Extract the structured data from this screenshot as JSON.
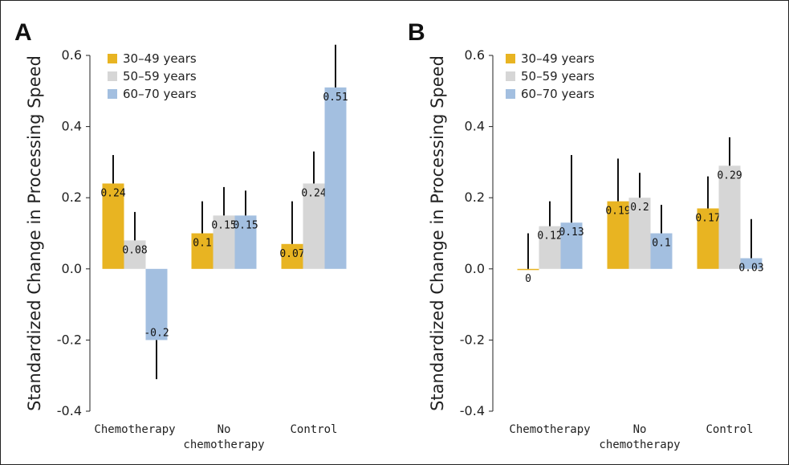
{
  "colors": {
    "series": [
      "#e8b422",
      "#d6d6d6",
      "#a3bfe0"
    ],
    "text": "#222222",
    "errorbar": "#111111"
  },
  "chart_data": [
    {
      "type": "bar",
      "panel": "A",
      "ylabel": "Standardized Change in Processing Speed",
      "ylim": [
        -0.4,
        0.6
      ],
      "yticks": [
        "-0.4",
        "-0.2",
        "0.0",
        "0.2",
        "0.4",
        "0.6"
      ],
      "categories": [
        "Chemotherapy",
        "No chemotherapy",
        "Control"
      ],
      "series": [
        {
          "name": "30–49 years",
          "values": [
            0.24,
            0.1,
            0.07
          ],
          "labels": [
            "0.24",
            "0.1",
            "0.07"
          ],
          "err_tips": [
            0.32,
            0.19,
            0.19
          ]
        },
        {
          "name": "50–59 years",
          "values": [
            0.08,
            0.15,
            0.24
          ],
          "labels": [
            "0.08",
            "0.15",
            "0.24"
          ],
          "err_tips": [
            0.16,
            0.23,
            0.33
          ]
        },
        {
          "name": "60–70 years",
          "values": [
            -0.2,
            0.15,
            0.51
          ],
          "labels": [
            "-0.2",
            "0.15",
            "0.51"
          ],
          "err_tips": [
            -0.31,
            0.22,
            0.63
          ]
        }
      ],
      "legend_position": "top-left",
      "grid": false
    },
    {
      "type": "bar",
      "panel": "B",
      "ylabel": "Standardized Change in Processing Speed",
      "ylim": [
        -0.4,
        0.6
      ],
      "yticks": [
        "-0.4",
        "-0.2",
        "0.0",
        "0.2",
        "0.4",
        "0.6"
      ],
      "categories": [
        "Chemotherapy",
        "No chemotherapy",
        "Control"
      ],
      "series": [
        {
          "name": "30–49 years",
          "values": [
            0.0,
            0.19,
            0.17
          ],
          "labels": [
            "0",
            "0.19",
            "0.17"
          ],
          "err_tips": [
            0.1,
            0.31,
            0.26
          ]
        },
        {
          "name": "50–59 years",
          "values": [
            0.12,
            0.2,
            0.29
          ],
          "labels": [
            "0.12",
            "0.2",
            "0.29"
          ],
          "err_tips": [
            0.19,
            0.27,
            0.37
          ]
        },
        {
          "name": "60–70 years",
          "values": [
            0.13,
            0.1,
            0.03
          ],
          "labels": [
            "0.13",
            "0.1",
            "0.03"
          ],
          "err_tips": [
            0.32,
            0.18,
            0.14
          ]
        }
      ],
      "legend_position": "top-left",
      "grid": false
    }
  ]
}
